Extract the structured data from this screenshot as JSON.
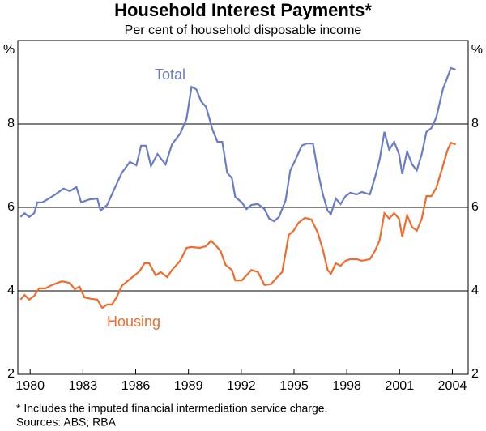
{
  "chart_data": {
    "type": "line",
    "title": "Household Interest Payments*",
    "subtitle": "Per cent of household disposable income",
    "y_label": "%",
    "footnote": "* Includes the imputed financial intermediation service charge.",
    "source": "Sources: ABS; RBA",
    "xlim": [
      1979.3,
      2004.9
    ],
    "xticks": [
      1980,
      1983,
      1986,
      1989,
      1992,
      1995,
      1998,
      2001,
      2004
    ],
    "ylim": [
      2,
      10
    ],
    "yticks": [
      2,
      4,
      6,
      8
    ],
    "grid": true,
    "series": [
      {
        "name": "Total",
        "color": "#6b7cc6",
        "x": [
          1979.45,
          1979.68,
          1979.95,
          1980.23,
          1980.41,
          1980.69,
          1981.06,
          1981.43,
          1981.89,
          1982.26,
          1982.63,
          1982.9,
          1983.36,
          1983.82,
          1984.0,
          1984.38,
          1984.75,
          1985.21,
          1985.67,
          1986.04,
          1986.31,
          1986.59,
          1986.87,
          1987.24,
          1987.7,
          1988.06,
          1988.53,
          1988.89,
          1989.17,
          1989.45,
          1989.72,
          1990.0,
          1990.37,
          1990.65,
          1990.92,
          1991.2,
          1991.47,
          1991.66,
          1992.03,
          1992.3,
          1992.58,
          1992.95,
          1993.32,
          1993.59,
          1993.87,
          1994.15,
          1994.52,
          1994.79,
          1995.07,
          1995.44,
          1995.71,
          1996.08,
          1996.36,
          1996.64,
          1996.91,
          1997.1,
          1997.37,
          1997.65,
          1997.93,
          1998.2,
          1998.57,
          1998.85,
          1999.31,
          1999.59,
          1999.86,
          2000.14,
          2000.41,
          2000.69,
          2000.97,
          2001.15,
          2001.43,
          2001.71,
          2001.98,
          2002.26,
          2002.53,
          2002.81,
          2003.09,
          2003.46,
          2003.73,
          2003.92,
          2004.19
        ],
        "values": [
          5.77,
          5.86,
          5.77,
          5.86,
          6.12,
          6.12,
          6.21,
          6.31,
          6.45,
          6.39,
          6.49,
          6.12,
          6.19,
          6.21,
          5.92,
          6.06,
          6.41,
          6.83,
          7.09,
          7.01,
          7.48,
          7.48,
          6.99,
          7.28,
          7.03,
          7.51,
          7.77,
          8.12,
          8.89,
          8.83,
          8.54,
          8.41,
          7.86,
          7.57,
          7.57,
          6.83,
          6.7,
          6.25,
          6.12,
          5.96,
          6.06,
          6.08,
          5.96,
          5.73,
          5.67,
          5.77,
          6.17,
          6.89,
          7.13,
          7.48,
          7.53,
          7.53,
          6.85,
          6.31,
          5.92,
          5.84,
          6.21,
          6.08,
          6.27,
          6.35,
          6.31,
          6.37,
          6.31,
          6.7,
          7.13,
          7.81,
          7.38,
          7.57,
          7.28,
          6.8,
          7.34,
          7.03,
          6.89,
          7.28,
          7.81,
          7.9,
          8.16,
          8.83,
          9.13,
          9.34,
          9.3
        ]
      },
      {
        "name": "Housing",
        "color": "#f26b2d",
        "x": [
          1979.45,
          1979.68,
          1979.95,
          1980.23,
          1980.51,
          1980.88,
          1981.15,
          1981.43,
          1981.8,
          1982.26,
          1982.53,
          1982.81,
          1983.09,
          1983.46,
          1983.82,
          1984.1,
          1984.38,
          1984.65,
          1984.93,
          1985.21,
          1985.58,
          1985.94,
          1986.22,
          1986.5,
          1986.77,
          1987.14,
          1987.42,
          1987.79,
          1988.06,
          1988.53,
          1988.89,
          1989.17,
          1989.63,
          1990.0,
          1990.28,
          1990.55,
          1990.83,
          1991.11,
          1991.47,
          1991.66,
          1992.03,
          1992.3,
          1992.58,
          1992.95,
          1993.32,
          1993.69,
          1993.96,
          1994.33,
          1994.7,
          1994.98,
          1995.25,
          1995.62,
          1995.99,
          1996.36,
          1996.64,
          1996.91,
          1997.1,
          1997.37,
          1997.65,
          1997.93,
          1998.2,
          1998.57,
          1998.85,
          1999.31,
          1999.59,
          1999.86,
          2000.14,
          2000.41,
          2000.69,
          2000.97,
          2001.15,
          2001.43,
          2001.71,
          2001.98,
          2002.26,
          2002.53,
          2002.81,
          2003.09,
          2003.46,
          2003.73,
          2003.92,
          2004.19
        ],
        "values": [
          3.79,
          3.9,
          3.79,
          3.88,
          4.06,
          4.06,
          4.12,
          4.17,
          4.23,
          4.19,
          4.04,
          4.1,
          3.84,
          3.81,
          3.79,
          3.59,
          3.67,
          3.67,
          3.86,
          4.12,
          4.25,
          4.37,
          4.47,
          4.66,
          4.66,
          4.37,
          4.45,
          4.33,
          4.5,
          4.72,
          5.03,
          5.05,
          5.03,
          5.07,
          5.2,
          5.09,
          4.95,
          4.62,
          4.5,
          4.25,
          4.25,
          4.37,
          4.5,
          4.45,
          4.14,
          4.16,
          4.29,
          4.45,
          5.34,
          5.44,
          5.63,
          5.75,
          5.71,
          5.38,
          4.99,
          4.5,
          4.41,
          4.66,
          4.6,
          4.72,
          4.76,
          4.76,
          4.72,
          4.76,
          4.95,
          5.2,
          5.86,
          5.73,
          5.86,
          5.73,
          5.3,
          5.81,
          5.53,
          5.44,
          5.73,
          6.27,
          6.27,
          6.47,
          6.99,
          7.38,
          7.55,
          7.51
        ]
      }
    ]
  }
}
